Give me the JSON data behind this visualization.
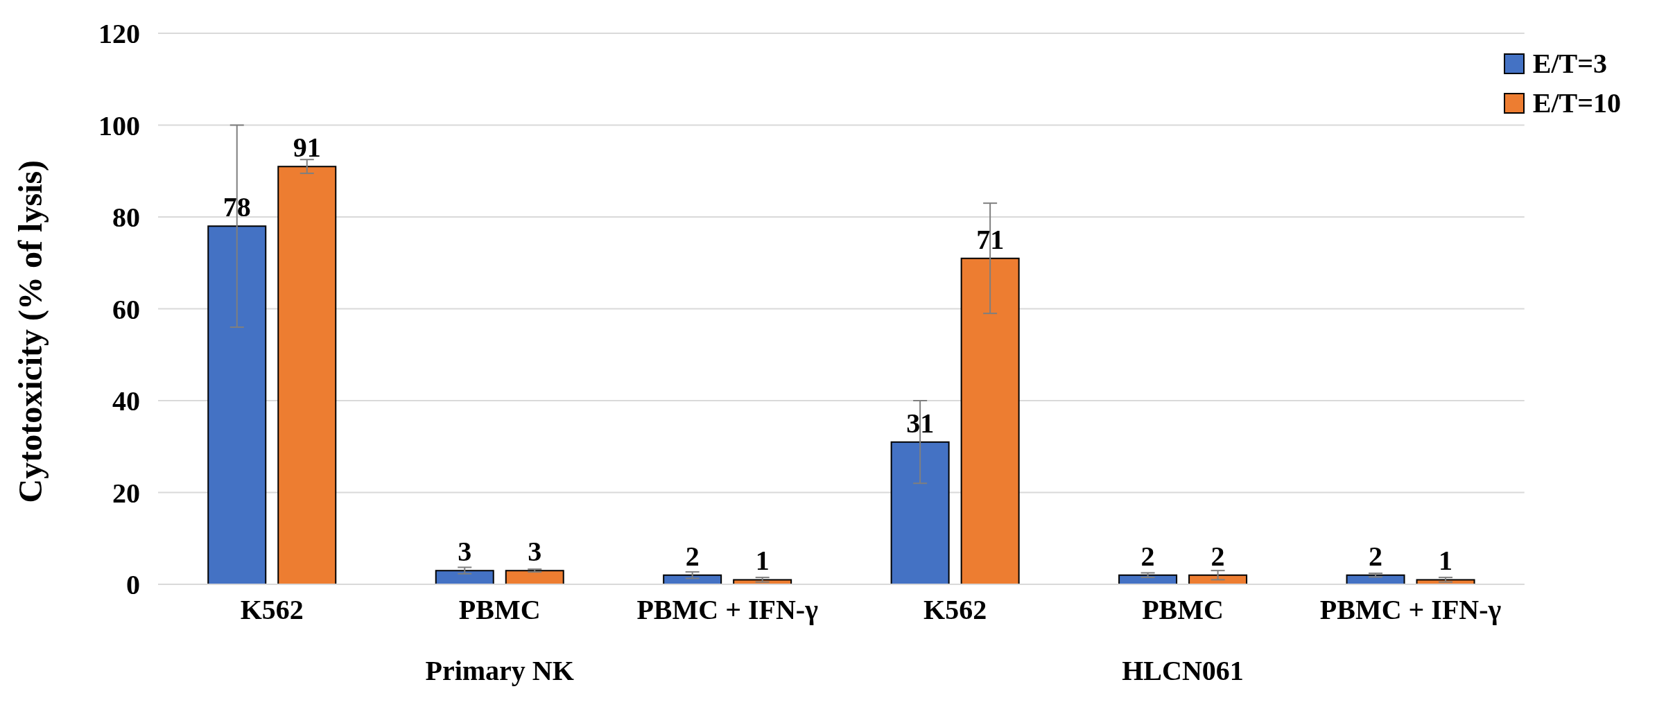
{
  "chart_data": {
    "type": "bar",
    "ylabel": "Cytotoxicity (% of lysis)",
    "categories": [
      "K562",
      "PBMC",
      "PBMC + IFN-γ",
      "K562",
      "PBMC",
      "PBMC + IFN-γ"
    ],
    "series": [
      {
        "name": "E/T=3",
        "color": "#4472c4",
        "values": [
          78,
          3,
          2,
          31,
          2,
          2
        ],
        "errors": [
          22,
          0.7,
          0.7,
          9,
          0.5,
          0.4
        ]
      },
      {
        "name": "E/T=10",
        "color": "#ed7d31",
        "values": [
          91,
          3,
          1,
          71,
          2,
          1
        ],
        "errors": [
          1.5,
          0.3,
          0.5,
          12,
          1,
          0.5
        ]
      }
    ],
    "annotations": [
      "Primary NK",
      "HLCN061"
    ],
    "ylim": [
      0,
      120
    ],
    "yticks": [
      0,
      20,
      40,
      60,
      80,
      100,
      120
    ],
    "grid": "y",
    "legend": "top right",
    "data_labels": true
  }
}
